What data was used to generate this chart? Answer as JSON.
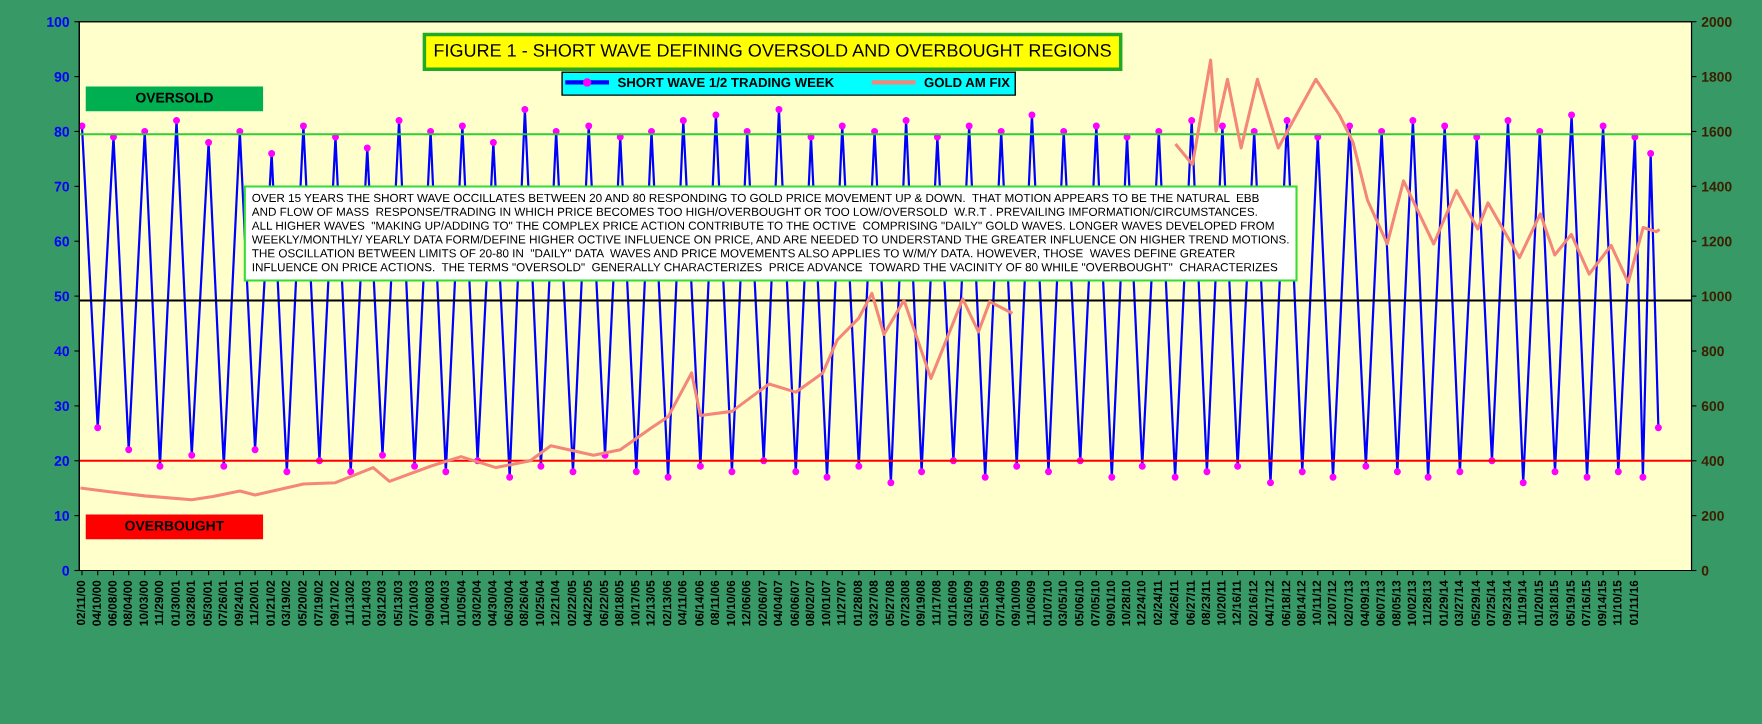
{
  "chart_data": {
    "type": "line",
    "title": "FIGURE 1 - SHORT WAVE DEFINING OVERSOLD AND OVERBOUGHT REGIONS",
    "x": [
      "2000-02-11",
      "2000-04-10",
      "2000-06-08",
      "2000-08-04",
      "2000-10-03",
      "2000-11-29",
      "2001-01-30",
      "2001-03-28",
      "2001-05-30",
      "2001-07-26",
      "2001-09-24",
      "2001-11-20",
      "2002-01-21",
      "2002-03-19",
      "2002-05-20",
      "2002-07-19",
      "2002-09-17",
      "2002-11-13",
      "2003-01-14",
      "2003-03-12",
      "2003-05-13",
      "2003-07-10",
      "2003-09-08",
      "2003-11-04",
      "2004-01-05",
      "2004-03-02",
      "2004-04-30",
      "2004-06-30",
      "2004-08-26",
      "2004-10-25",
      "2004-12-21",
      "2005-02-22",
      "2005-04-22",
      "2005-06-22",
      "2005-08-18",
      "2005-10-17",
      "2005-12-13",
      "2006-02-13",
      "2006-04-11",
      "2006-06-14",
      "2006-08-11",
      "2006-10-10",
      "2006-12-06",
      "2007-02-06",
      "2007-04-04",
      "2007-06-06",
      "2007-08-02",
      "2007-10-01",
      "2007-11-27",
      "2008-01-28",
      "2008-03-27",
      "2008-05-27",
      "2008-07-23",
      "2008-09-19",
      "2008-11-17",
      "2009-01-16",
      "2009-03-16",
      "2009-05-15",
      "2009-07-14",
      "2009-09-10",
      "2009-11-06",
      "2010-01-07",
      "2010-03-05",
      "2010-05-06",
      "2010-07-05",
      "2010-09-01",
      "2010-10-28",
      "2010-12-24",
      "2011-02-24",
      "2011-04-26",
      "2011-06-27",
      "2011-08-23",
      "2011-10-20",
      "2011-12-16",
      "2012-02-16",
      "2012-04-17",
      "2012-06-18",
      "2012-08-14",
      "2012-10-11",
      "2012-12-07",
      "2013-02-07",
      "2013-04-09",
      "2013-06-07",
      "2013-08-05",
      "2013-10-02",
      "2013-11-28",
      "2014-01-29",
      "2014-03-27",
      "2014-05-29",
      "2014-07-25",
      "2014-09-23",
      "2014-11-19",
      "2015-01-20",
      "2015-03-18",
      "2015-05-19",
      "2015-07-16",
      "2015-09-14",
      "2015-11-10",
      "2016-01-11",
      "2016-02-10",
      "2016-03-10",
      "2016-04-08"
    ],
    "series": [
      {
        "name": "SHORT WAVE 1/2 TRADING WEEK",
        "color": "#0000ff",
        "marker": "circle",
        "values": [
          81,
          26,
          79,
          22,
          80,
          19,
          82,
          21,
          78,
          19,
          80,
          22,
          76,
          18,
          81,
          20,
          79,
          18,
          77,
          21,
          82,
          19,
          80,
          18,
          81,
          20,
          78,
          17,
          84,
          19,
          80,
          18,
          81,
          21,
          79,
          18,
          80,
          17,
          82,
          19,
          83,
          18,
          80,
          20,
          84,
          18,
          79,
          17,
          81,
          19,
          80,
          16,
          82,
          18,
          79,
          20,
          81,
          17,
          80,
          19,
          83,
          18,
          80,
          20,
          81,
          17,
          79,
          19,
          80,
          17,
          82,
          18,
          81,
          19,
          80,
          16,
          82,
          18,
          79,
          17,
          81,
          19,
          80,
          18,
          82,
          17,
          81,
          18,
          79,
          20,
          82,
          16,
          80,
          18,
          83,
          17,
          81,
          18,
          79,
          17,
          76,
          26
        ]
      },
      {
        "name": "GOLD AM FIX",
        "color": "#f4877a",
        "axis": "y2",
        "x": [
          "2000-02-11",
          "2000-06-08",
          "2000-10-03",
          "2001-03-28",
          "2001-06-15",
          "2001-09-24",
          "2001-11-20",
          "2002-05-20",
          "2002-09-17",
          "2003-02-05",
          "2003-04-07",
          "2003-09-08",
          "2003-12-31",
          "2004-05-10",
          "2004-09-15",
          "2004-12-01",
          "2005-05-10",
          "2005-08-18",
          "2005-12-13",
          "2006-02-13",
          "2006-05-12",
          "2006-06-14",
          "2006-10-10",
          "2007-02-26",
          "2007-06-06",
          "2007-09-15",
          "2007-11-08",
          "2008-01-28",
          "2008-03-17",
          "2008-05-01",
          "2008-07-15",
          "2008-10-24",
          "2009-02-20",
          "2009-04-20",
          "2009-06-01",
          "2009-08-20",
          "2009-12-02",
          "2010-02-05",
          "2010-06-28",
          "2010-07-28",
          "2010-11-09",
          "2011-01-28",
          "2011-05-01",
          "2011-06-30",
          "2011-09-06",
          "2011-09-26",
          "2011-11-08",
          "2011-12-29",
          "2012-02-28",
          "2012-05-16",
          "2012-10-04",
          "2012-12-31",
          "2013-02-20",
          "2013-04-15",
          "2013-06-28",
          "2013-08-28",
          "2013-12-19",
          "2014-03-14",
          "2014-06-02",
          "2014-07-10",
          "2014-11-05",
          "2015-01-22",
          "2015-03-17",
          "2015-05-18",
          "2015-07-24",
          "2015-10-14",
          "2015-12-17",
          "2016-02-11",
          "2016-03-31",
          "2016-04-08"
        ],
        "values": [
          300,
          285,
          272,
          258,
          270,
          290,
          275,
          315,
          320,
          375,
          325,
          380,
          415,
          375,
          400,
          455,
          420,
          440,
          520,
          560,
          720,
          565,
          580,
          680,
          650,
          720,
          840,
          920,
          1010,
          860,
          985,
          700,
          990,
          870,
          980,
          940,
          null,
          null,
          null,
          null,
          null,
          null,
          1550,
          1480,
          1860,
          1600,
          1790,
          1540,
          1790,
          1540,
          1790,
          1660,
          1560,
          1350,
          1190,
          1420,
          1190,
          1385,
          1245,
          1340,
          1140,
          1300,
          1150,
          1225,
          1080,
          1185,
          1050,
          1250,
          1235,
          1240
        ]
      }
    ],
    "ylim": [
      0,
      100
    ],
    "yticks": [
      0,
      10,
      20,
      30,
      40,
      50,
      60,
      70,
      80,
      90,
      100
    ],
    "y2lim": [
      0,
      2000
    ],
    "y2ticks": [
      0,
      200,
      400,
      600,
      800,
      1000,
      1200,
      1400,
      1600,
      1800,
      2000
    ],
    "xlim": [
      "2000-02-01",
      "2016-08-10"
    ],
    "xticks": [
      {
        "value": "2000-02-11",
        "label": "02/11/00"
      },
      {
        "value": "2000-04-10",
        "label": "04/10/00"
      },
      {
        "value": "2000-06-08",
        "label": "06/08/00"
      },
      {
        "value": "2000-08-04",
        "label": "08/04/00"
      },
      {
        "value": "2000-10-03",
        "label": "10/03/00"
      },
      {
        "value": "2000-11-29",
        "label": "11/29/00"
      },
      {
        "value": "2001-01-30",
        "label": "01/30/01"
      },
      {
        "value": "2001-03-28",
        "label": "03/28/01"
      },
      {
        "value": "2001-05-30",
        "label": "05/30/01"
      },
      {
        "value": "2001-07-26",
        "label": "07/26/01"
      },
      {
        "value": "2001-09-24",
        "label": "09/24/01"
      },
      {
        "value": "2001-11-20",
        "label": "11/20/01"
      },
      {
        "value": "2002-01-21",
        "label": "01/21/02"
      },
      {
        "value": "2002-03-19",
        "label": "03/19/02"
      },
      {
        "value": "2002-05-20",
        "label": "05/20/02"
      },
      {
        "value": "2002-07-19",
        "label": "07/19/02"
      },
      {
        "value": "2002-09-17",
        "label": "09/17/02"
      },
      {
        "value": "2002-11-13",
        "label": "11/13/02"
      },
      {
        "value": "2003-01-14",
        "label": "01/14/03"
      },
      {
        "value": "2003-03-12",
        "label": "03/12/03"
      },
      {
        "value": "2003-05-13",
        "label": "05/13/03"
      },
      {
        "value": "2003-07-10",
        "label": "07/10/03"
      },
      {
        "value": "2003-09-08",
        "label": "09/08/03"
      },
      {
        "value": "2003-11-04",
        "label": "11/04/03"
      },
      {
        "value": "2004-01-05",
        "label": "01/05/04"
      },
      {
        "value": "2004-03-02",
        "label": "03/02/04"
      },
      {
        "value": "2004-04-30",
        "label": "04/30/04"
      },
      {
        "value": "2004-06-30",
        "label": "06/30/04"
      },
      {
        "value": "2004-08-26",
        "label": "08/26/04"
      },
      {
        "value": "2004-10-25",
        "label": "10/25/04"
      },
      {
        "value": "2004-12-21",
        "label": "12/21/04"
      },
      {
        "value": "2005-02-22",
        "label": "02/22/05"
      },
      {
        "value": "2005-04-22",
        "label": "04/22/05"
      },
      {
        "value": "2005-06-22",
        "label": "06/22/05"
      },
      {
        "value": "2005-08-18",
        "label": "08/18/05"
      },
      {
        "value": "2005-10-17",
        "label": "10/17/05"
      },
      {
        "value": "2005-12-13",
        "label": "12/13/05"
      },
      {
        "value": "2006-02-13",
        "label": "02/13/06"
      },
      {
        "value": "2006-04-11",
        "label": "04/11/06"
      },
      {
        "value": "2006-06-14",
        "label": "06/14/06"
      },
      {
        "value": "2006-08-11",
        "label": "08/11/06"
      },
      {
        "value": "2006-10-10",
        "label": "10/10/06"
      },
      {
        "value": "2006-12-06",
        "label": "12/06/06"
      },
      {
        "value": "2007-02-06",
        "label": "02/06/07"
      },
      {
        "value": "2007-04-04",
        "label": "04/04/07"
      },
      {
        "value": "2007-06-06",
        "label": "06/06/07"
      },
      {
        "value": "2007-08-02",
        "label": "08/02/07"
      },
      {
        "value": "2007-10-01",
        "label": "10/01/07"
      },
      {
        "value": "2007-11-27",
        "label": "11/27/07"
      },
      {
        "value": "2008-01-28",
        "label": "01/28/08"
      },
      {
        "value": "2008-03-27",
        "label": "03/27/08"
      },
      {
        "value": "2008-05-27",
        "label": "05/27/08"
      },
      {
        "value": "2008-07-23",
        "label": "07/23/08"
      },
      {
        "value": "2008-09-19",
        "label": "09/19/08"
      },
      {
        "value": "2008-11-17",
        "label": "11/17/08"
      },
      {
        "value": "2009-01-16",
        "label": "01/16/09"
      },
      {
        "value": "2009-03-16",
        "label": "03/16/09"
      },
      {
        "value": "2009-05-15",
        "label": "05/15/09"
      },
      {
        "value": "2009-07-14",
        "label": "07/14/09"
      },
      {
        "value": "2009-09-10",
        "label": "09/10/09"
      },
      {
        "value": "2009-11-06",
        "label": "11/06/09"
      },
      {
        "value": "2010-01-07",
        "label": "01/07/10"
      },
      {
        "value": "2010-03-05",
        "label": "03/05/10"
      },
      {
        "value": "2010-05-06",
        "label": "05/06/10"
      },
      {
        "value": "2010-07-05",
        "label": "07/05/10"
      },
      {
        "value": "2010-09-01",
        "label": "09/01/10"
      },
      {
        "value": "2010-10-28",
        "label": "10/28/10"
      },
      {
        "value": "2010-12-24",
        "label": "12/24/10"
      },
      {
        "value": "2011-02-24",
        "label": "02/24/11"
      },
      {
        "value": "2011-04-26",
        "label": "04/26/11"
      },
      {
        "value": "2011-06-27",
        "label": "06/27/11"
      },
      {
        "value": "2011-08-23",
        "label": "08/23/11"
      },
      {
        "value": "2011-10-20",
        "label": "10/20/11"
      },
      {
        "value": "2011-12-16",
        "label": "12/16/11"
      },
      {
        "value": "2012-02-16",
        "label": "02/16/12"
      },
      {
        "value": "2012-04-17",
        "label": "04/17/12"
      },
      {
        "value": "2012-06-18",
        "label": "06/18/12"
      },
      {
        "value": "2012-08-14",
        "label": "08/14/12"
      },
      {
        "value": "2012-10-11",
        "label": "10/11/12"
      },
      {
        "value": "2012-12-07",
        "label": "12/07/12"
      },
      {
        "value": "2013-02-07",
        "label": "02/07/13"
      },
      {
        "value": "2013-04-09",
        "label": "04/09/13"
      },
      {
        "value": "2013-06-07",
        "label": "06/07/13"
      },
      {
        "value": "2013-08-05",
        "label": "08/05/13"
      },
      {
        "value": "2013-10-02",
        "label": "10/02/13"
      },
      {
        "value": "2013-11-28",
        "label": "11/28/13"
      },
      {
        "value": "2014-01-29",
        "label": "01/29/14"
      },
      {
        "value": "2014-03-27",
        "label": "03/27/14"
      },
      {
        "value": "2014-05-29",
        "label": "05/29/14"
      },
      {
        "value": "2014-07-25",
        "label": "07/25/14"
      },
      {
        "value": "2014-09-23",
        "label": "09/23/14"
      },
      {
        "value": "2014-11-19",
        "label": "11/19/14"
      },
      {
        "value": "2015-01-20",
        "label": "01/20/15"
      },
      {
        "value": "2015-03-18",
        "label": "03/18/15"
      },
      {
        "value": "2015-05-19",
        "label": "05/19/15"
      },
      {
        "value": "2015-07-16",
        "label": "07/16/15"
      },
      {
        "value": "2015-09-14",
        "label": "09/14/15"
      },
      {
        "value": "2015-11-10",
        "label": "11/10/15"
      },
      {
        "value": "2016-01-11",
        "label": "01/11/16"
      }
    ],
    "ref_lines": [
      {
        "axis": "y",
        "value": 79.5,
        "color": "#33cc33"
      },
      {
        "axis": "y",
        "value": 49.2,
        "color": "#000000"
      },
      {
        "axis": "y",
        "value": 20,
        "color": "#ff0000"
      }
    ],
    "legend": "top",
    "annotations": [
      "OVERSOLD",
      "OVERBOUGHT",
      "OVER 15 YEARS THE SHORT WAVE OCCILLATES BETWEEN 20 AND 80 RESPONDING TO GOLD PRICE MOVEMENT UP & DOWN.  THAT MOTION APPEARS TO BE THE NATURAL  EBB\nAND FLOW OF MASS  RESPONSE/TRADING IN WHICH PRICE BECOMES TOO HIGH/OVERBOUGHT OR TOO LOW/OVERSOLD  W.R.T . PREVAILING IMFORMATION/CIRCUMSTANCES.\nALL HIGHER WAVES  \"MAKING UP/ADDING TO\" THE COMPLEX PRICE ACTION CONTRIBUTE TO THE OCTIVE  COMPRISING \"DAILY\" GOLD WAVES. LONGER WAVES DEVELOPED FROM\nWEEKLY/MONTHLY/ YEARLY DATA FORM/DEFINE HIGHER OCTIVE INFLUENCE ON PRICE, AND ARE NEEDED TO UNDERSTAND THE GREATER INFLUENCE ON HIGHER TREND MOTIONS.\nTHE OSCILLATION BETWEEN LIMITS OF 20-80 IN  \"DAILY\" DATA  WAVES AND PRICE MOVEMENTS ALSO APPLIES TO W/M/Y DATA. HOWEVER, THOSE  WAVES DEFINE GREATER\nINFLUENCE ON PRICE ACTIONS.  THE TERMS \"OVERSOLD\"  GENERALLY CHARACTERIZES  PRICE ADVANCE  TOWARD THE VACINITY OF 80 WHILE \"OVERBOUGHT\"  CHARACTERIZES"
    ]
  }
}
